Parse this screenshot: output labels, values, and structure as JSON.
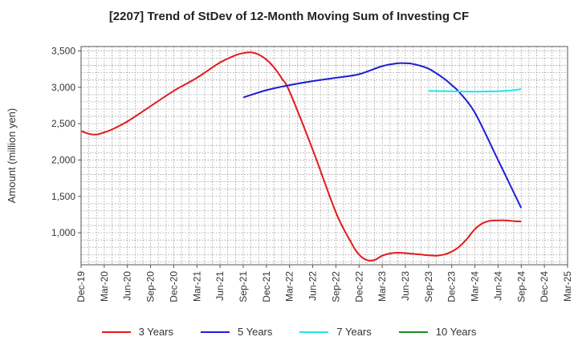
{
  "chart_data": {
    "type": "line",
    "title": "[2207]  Trend of StDev of 12-Month Moving Sum of Investing CF",
    "xlabel": "",
    "ylabel": "Amount (million yen)",
    "ylim": [
      560,
      3560
    ],
    "yticks": [
      1000,
      1500,
      2000,
      2500,
      3000,
      3500
    ],
    "ytick_labels": [
      "1,000",
      "1,500",
      "2,000",
      "2,500",
      "3,000",
      "3,500"
    ],
    "x_range": [
      "2019-12",
      "2025-03"
    ],
    "xtick_labels": [
      "Dec-19",
      "Mar-20",
      "Jun-20",
      "Sep-20",
      "Dec-20",
      "Mar-21",
      "Jun-21",
      "Sep-21",
      "Dec-21",
      "Mar-22",
      "Jun-22",
      "Sep-22",
      "Dec-22",
      "Mar-23",
      "Jun-23",
      "Sep-23",
      "Dec-23",
      "Mar-24",
      "Jun-24",
      "Sep-24",
      "Dec-24",
      "Mar-25"
    ],
    "grid": true,
    "legend_position": "bottom",
    "series": [
      {
        "name": "3 Years",
        "color": "#e31a1c",
        "x": [
          "2019-12",
          "2020-01",
          "2020-02",
          "2020-03",
          "2020-04",
          "2020-06",
          "2020-09",
          "2020-12",
          "2021-03",
          "2021-06",
          "2021-08",
          "2021-09",
          "2021-10",
          "2021-11",
          "2021-12",
          "2022-01",
          "2022-02",
          "2022-03",
          "2022-06",
          "2022-09",
          "2022-11",
          "2022-12",
          "2023-01",
          "2023-02",
          "2023-03",
          "2023-04",
          "2023-05",
          "2023-06",
          "2023-07",
          "2023-08",
          "2023-09",
          "2023-10",
          "2023-11",
          "2023-12",
          "2024-01",
          "2024-02",
          "2024-03",
          "2024-04",
          "2024-05",
          "2024-06",
          "2024-07",
          "2024-08",
          "2024-09"
        ],
        "y": [
          2400,
          2360,
          2350,
          2380,
          2420,
          2530,
          2740,
          2950,
          3130,
          3340,
          3440,
          3470,
          3480,
          3450,
          3380,
          3270,
          3120,
          2940,
          2140,
          1280,
          860,
          700,
          625,
          625,
          685,
          715,
          725,
          720,
          710,
          700,
          690,
          685,
          700,
          740,
          810,
          920,
          1050,
          1130,
          1165,
          1170,
          1170,
          1160,
          1155
        ]
      },
      {
        "name": "5 Years",
        "color": "#1f1fd1",
        "x": [
          "2021-09",
          "2021-12",
          "2022-03",
          "2022-06",
          "2022-09",
          "2022-12",
          "2023-03",
          "2023-05",
          "2023-06",
          "2023-07",
          "2023-09",
          "2023-11",
          "2023-12",
          "2024-01",
          "2024-03",
          "2024-06",
          "2024-09"
        ],
        "y": [
          2860,
          2960,
          3030,
          3085,
          3130,
          3180,
          3290,
          3330,
          3330,
          3320,
          3255,
          3120,
          3030,
          2930,
          2650,
          2000,
          1340
        ]
      },
      {
        "name": "7 Years",
        "color": "#1fe6e6",
        "x": [
          "2023-09",
          "2023-12",
          "2024-03",
          "2024-06",
          "2024-08",
          "2024-09"
        ],
        "y": [
          2950,
          2945,
          2940,
          2945,
          2960,
          2975
        ]
      },
      {
        "name": "10 Years",
        "color": "#1a8a1a",
        "x": [],
        "y": []
      }
    ]
  }
}
